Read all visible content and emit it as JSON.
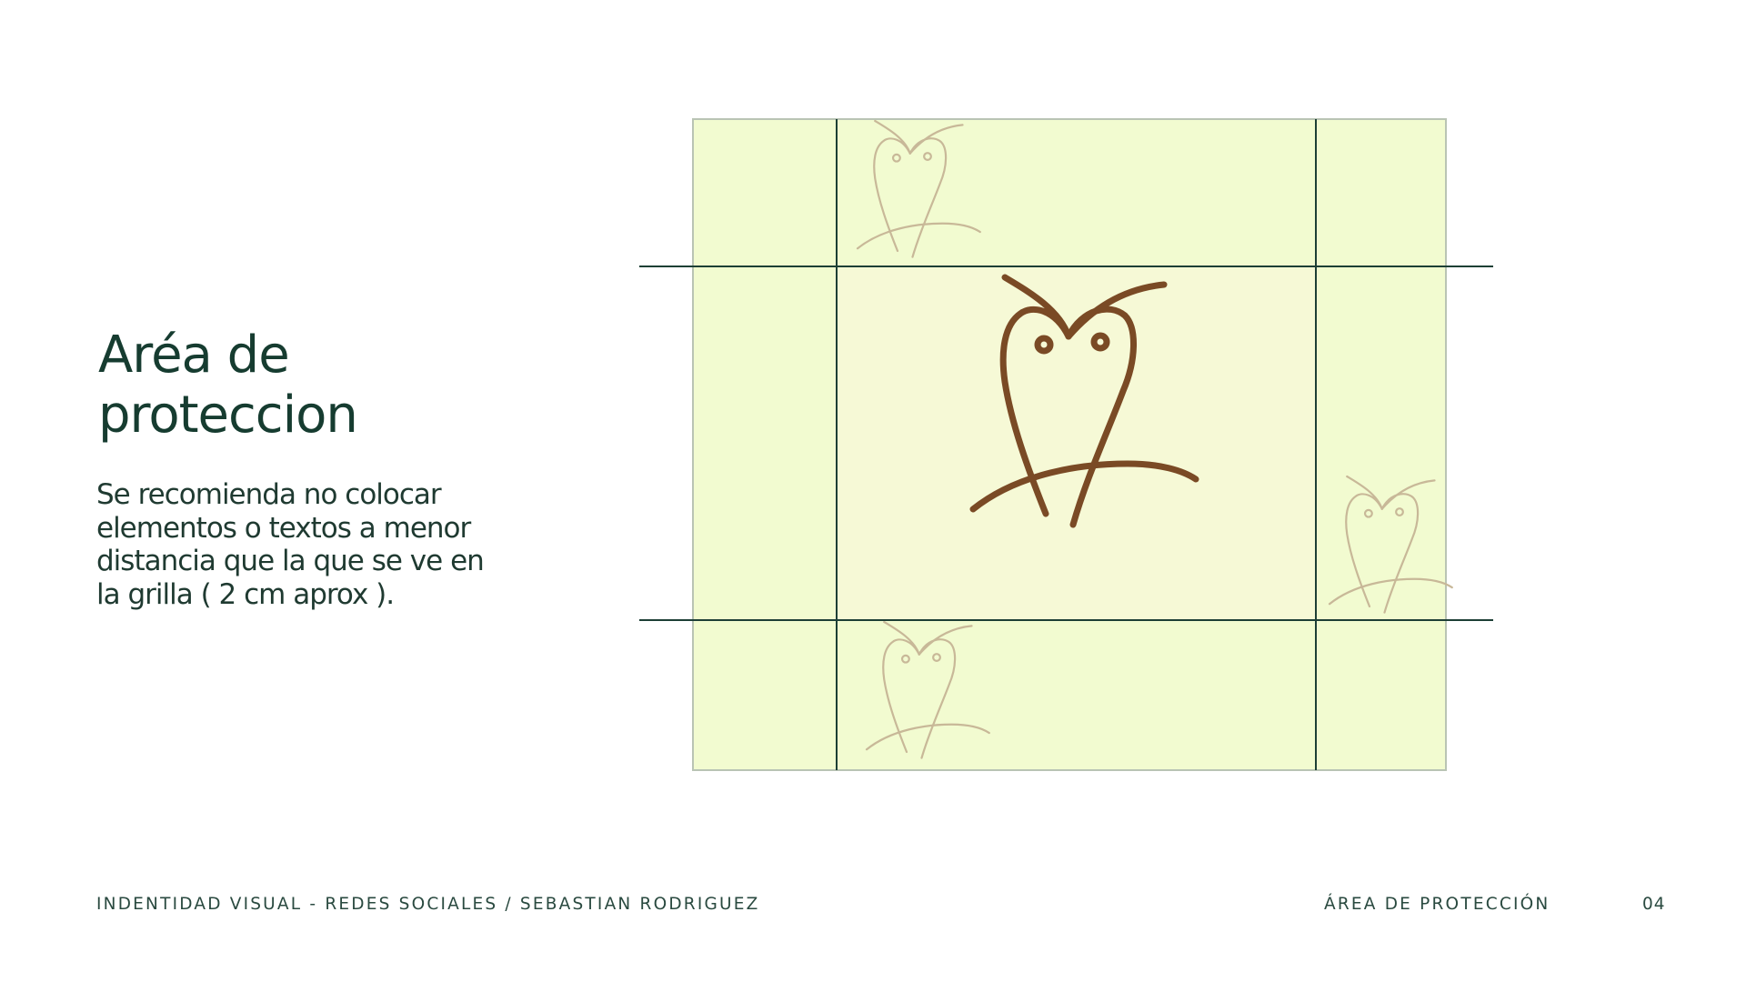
{
  "slide": {
    "title_line1": "Aréa de",
    "title_line2": "proteccion",
    "body": "Se recomienda no colocar elementos o textos a menor distancia que la que se ve en la grilla ( 2 cm aprox ).",
    "footer_left": "INDENTIDAD VISUAL - REDES SOCIALES / SEBASTIAN RODRIGUEZ",
    "footer_section": "ÁREA DE PROTECCIÓN",
    "page_number": "04"
  },
  "figure": {
    "logo_icon": "owl-logo-icon",
    "colors": {
      "background": "#f2fbd0",
      "safe_zone": "#f6f9d6",
      "grid_lines": "#1d3f35",
      "logo": "#7a4a25",
      "ghost_logo": "#c8b898"
    }
  }
}
